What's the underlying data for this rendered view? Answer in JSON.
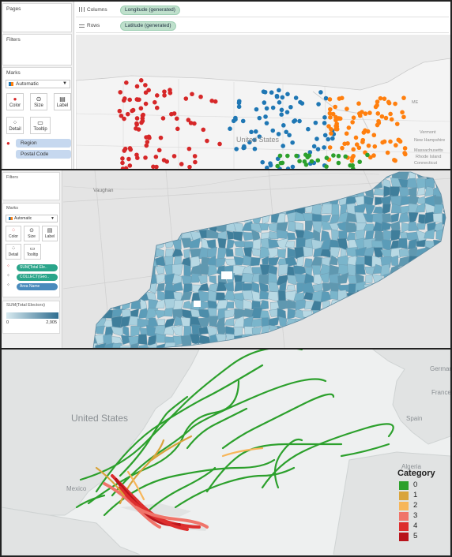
{
  "panel_tableau_us": {
    "sidebar": {
      "pages_title": "Pages",
      "filters_title": "Filters",
      "marks_title": "Marks",
      "mark_type": "Automatic",
      "buttons": [
        {
          "label": "Color",
          "icon": "color-icon"
        },
        {
          "label": "Size",
          "icon": "size-icon"
        },
        {
          "label": "Label",
          "icon": "label-icon"
        },
        {
          "label": "Detail",
          "icon": "detail-icon"
        },
        {
          "label": "Tooltip",
          "icon": "tooltip-icon"
        }
      ],
      "mark_fields": [
        "Region",
        "Postal Code"
      ]
    },
    "shelves": {
      "columns_label": "Columns",
      "columns_pill": "Longitude (generated)",
      "rows_label": "Rows",
      "rows_pill": "Latitude (generated)"
    },
    "map_labels": {
      "states": "United States",
      "vermont": "Vermont",
      "new_hampshire": "New Hampshire",
      "massachusetts": "Massachusetts",
      "rhode_island": "Rhode Island",
      "connecticut": "Connecticut",
      "me": "ME"
    },
    "region_colors": {
      "west": "#d62728",
      "central": "#1f77b4",
      "east": "#ff7f0e",
      "south": "#2ca02c"
    }
  },
  "panel_tableau_toronto": {
    "sidebar": {
      "filters_title": "Filters",
      "marks_title": "Marks",
      "mark_type": "Automatic",
      "buttons": [
        {
          "label": "Color",
          "icon": "color-icon"
        },
        {
          "label": "Size",
          "icon": "size-icon"
        },
        {
          "label": "Label",
          "icon": "label-icon"
        },
        {
          "label": "Detail",
          "icon": "detail-icon"
        },
        {
          "label": "Tooltip",
          "icon": "tooltip-icon"
        }
      ],
      "mark_fields": [
        "SUM(Total Ele..",
        "COLLECT(Geo..",
        "Area Name"
      ],
      "legend_title": "SUM(Total Electors)",
      "legend_min": "0",
      "legend_max": "2,905"
    },
    "map_labels": {
      "vaughan": "Vaughan"
    },
    "color_ramp": [
      "#cfe6ee",
      "#2f6d8f"
    ]
  },
  "panel_hurricanes": {
    "geo_labels": {
      "us": "United States",
      "mexico": "Mexico",
      "spain": "Spain",
      "france": "France",
      "germany": "Germany",
      "algeria": "Algeria"
    },
    "legend": {
      "title": "Category",
      "items": [
        {
          "label": "0",
          "color": "#2ca02c"
        },
        {
          "label": "1",
          "color": "#d9a43c"
        },
        {
          "label": "2",
          "color": "#f7b65a"
        },
        {
          "label": "3",
          "color": "#f0746a"
        },
        {
          "label": "4",
          "color": "#dd2e2e"
        },
        {
          "label": "5",
          "color": "#b8141b"
        }
      ]
    }
  }
}
